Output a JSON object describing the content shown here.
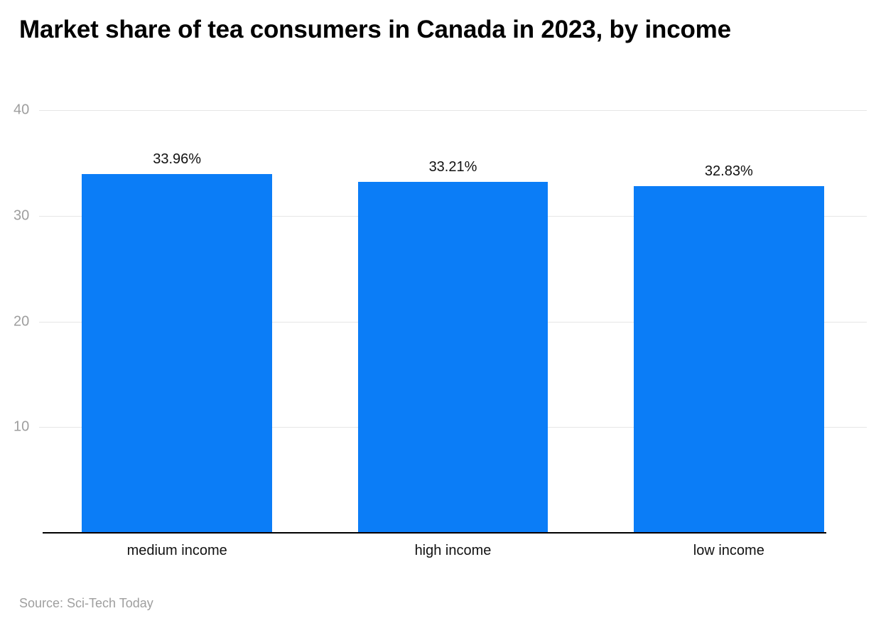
{
  "title": "Market share of tea consumers in Canada in 2023, by income",
  "source": "Source: Sci-Tech Today",
  "colors": {
    "bar": "#0b7df7",
    "gridline": "#e6e6e6",
    "axis": "#000000",
    "tick_label": "#9e9e9e",
    "data_label": "#111111"
  },
  "chart_data": {
    "type": "bar",
    "title": "Market share of tea consumers in Canada in 2023, by income",
    "categories": [
      "medium income",
      "high income",
      "low income"
    ],
    "values": [
      33.96,
      33.21,
      32.83
    ],
    "value_labels": [
      "33.96%",
      "33.21%",
      "32.83%"
    ],
    "xlabel": "",
    "ylabel": "",
    "ylim": [
      0,
      40
    ],
    "yticks": [
      40,
      30,
      20,
      10
    ],
    "grid": true,
    "legend": false,
    "source": "Source: Sci-Tech Today"
  }
}
